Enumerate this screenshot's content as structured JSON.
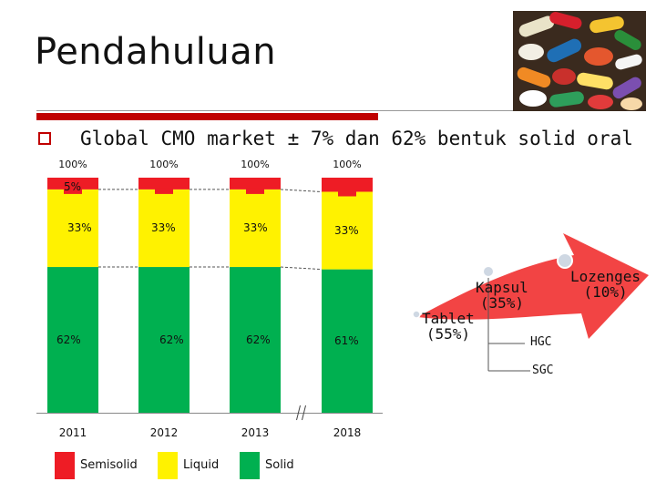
{
  "slide": {
    "title": "Pendahuluan",
    "bullet": "Global CMO market ± 7% dan 62% bentuk solid oral"
  },
  "colors": {
    "semisolid": "#ee1c25",
    "liquid": "#fff200",
    "solid": "#00b050",
    "accent": "#c00000",
    "arrow": "#f24444"
  },
  "icons": {
    "bullet": "square-bullet-icon",
    "image": "pills-photo",
    "axis-break": "axis-break-icon"
  },
  "chart_data": {
    "type": "bar",
    "stacked": true,
    "categories": [
      "2011",
      "2012",
      "2013",
      "2018"
    ],
    "series": [
      {
        "name": "Solid",
        "values": [
          62,
          62,
          62,
          61
        ],
        "labels": [
          "62%",
          "62%",
          "62%",
          "61%"
        ]
      },
      {
        "name": "Liquid",
        "values": [
          33,
          33,
          33,
          33
        ],
        "labels": [
          "33%",
          "33%",
          "33%",
          "33%"
        ]
      },
      {
        "name": "Semisolid",
        "values": [
          5,
          5,
          5,
          6
        ],
        "labels": [
          "5%",
          "",
          "",
          ""
        ]
      }
    ],
    "totals": [
      "100%",
      "100%",
      "100%",
      "100%"
    ],
    "ylim": [
      0,
      100
    ],
    "legend": "bottom",
    "axis_break_between": [
      "2013",
      "2018"
    ]
  },
  "arrow": {
    "labels": {
      "tablet": "Tablet\n(55%)",
      "kapsul": "Kapsul\n(35%)",
      "lozenges": "Lozenges\n(10%)",
      "hgc": "HGC",
      "sgc": "SGC"
    }
  }
}
